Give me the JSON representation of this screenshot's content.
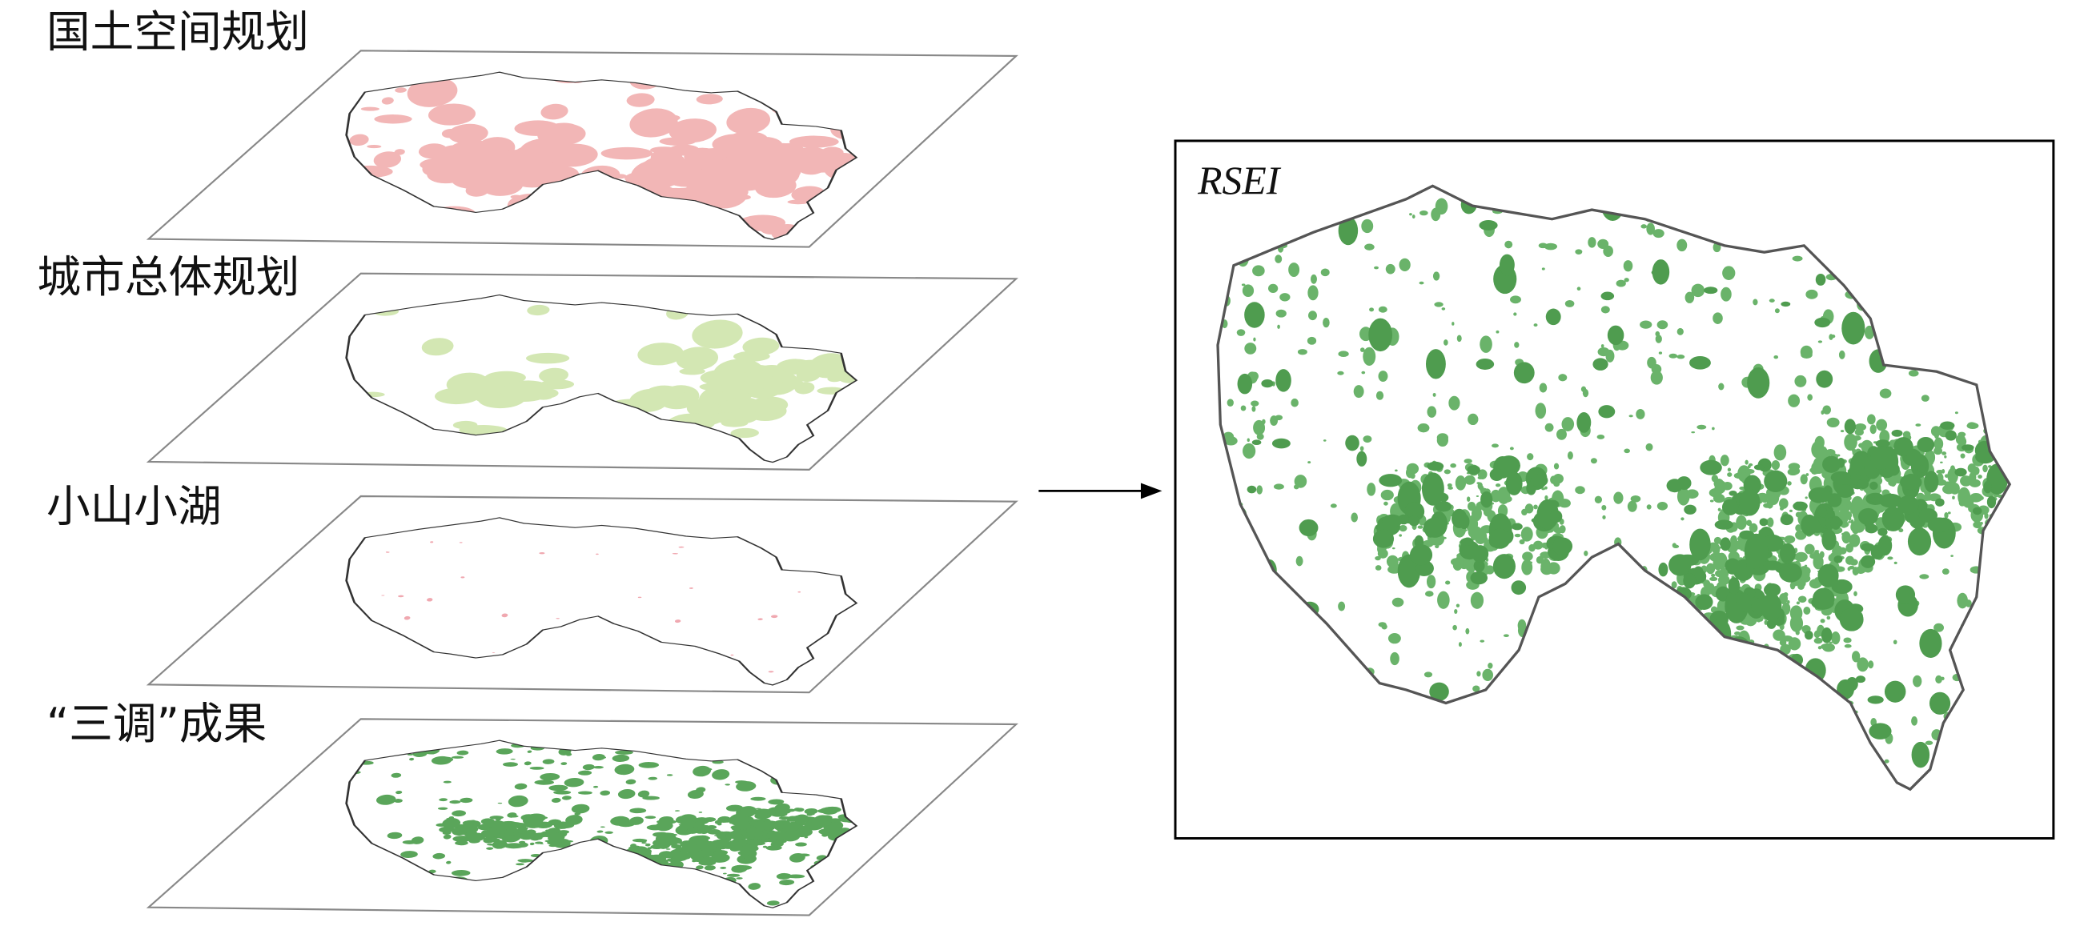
{
  "layers": [
    {
      "label": "国土空间规划"
    },
    {
      "label": "城市总体规划"
    },
    {
      "label": "小山小湖"
    },
    {
      "label": "“三调”成果"
    }
  ],
  "output": {
    "label": "RSEI"
  }
}
